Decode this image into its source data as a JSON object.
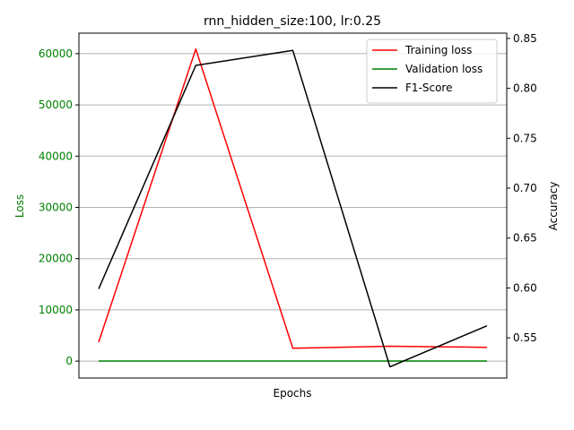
{
  "chart_data": {
    "type": "line",
    "title": "rnn_hidden_size:100, lr:0.25",
    "xlabel": "Epochs",
    "ylabel_left": "Loss",
    "ylabel_right": "Accuracy",
    "x": [
      1,
      2,
      3,
      4,
      5
    ],
    "ylim_left": [
      -3300,
      64000
    ],
    "ylim_right": [
      0.5097,
      0.8553
    ],
    "yticks_left": [
      "0",
      "10000",
      "20000",
      "30000",
      "40000",
      "50000",
      "60000"
    ],
    "yticks_right": [
      "0.55",
      "0.60",
      "0.65",
      "0.70",
      "0.75",
      "0.80",
      "0.85"
    ],
    "grid": "horizontal (left axis)",
    "legend_position": "upper right",
    "series": [
      {
        "name": "Training loss",
        "axis": "left",
        "color": "#ff0000",
        "values": [
          3700,
          60900,
          2500,
          2900,
          2700
        ]
      },
      {
        "name": "Validation loss",
        "axis": "left",
        "color": "#008000",
        "values": [
          20,
          20,
          20,
          20,
          20
        ]
      },
      {
        "name": "F1-Score",
        "axis": "right",
        "color": "#000000",
        "values": [
          0.599,
          0.823,
          0.838,
          0.521,
          0.562
        ]
      }
    ],
    "colors": {
      "left_axis": "#008000",
      "right_axis": "#000000",
      "grid": "#b0b0b0"
    }
  }
}
